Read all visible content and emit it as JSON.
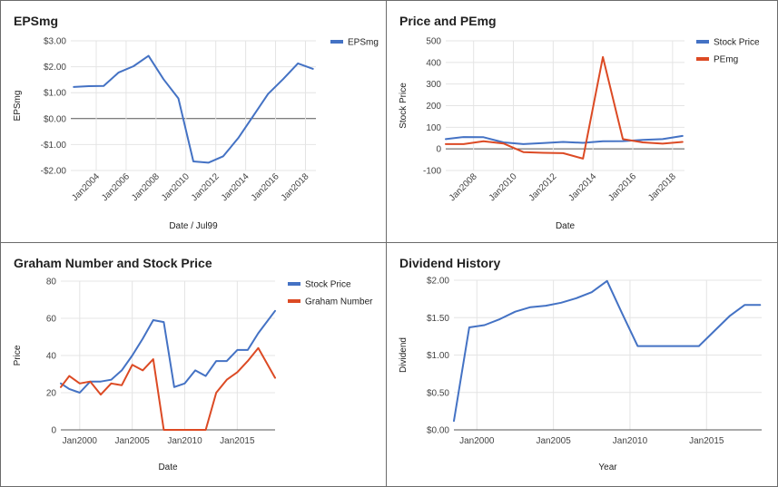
{
  "colors": {
    "blue": "#4472c4",
    "red": "#dc4a24",
    "grid": "#e4e4e4",
    "zero": "#555555"
  },
  "chart_data": [
    {
      "type": "line",
      "title": "EPSmg",
      "xlabel": "Date / Jul99",
      "ylabel": "EPSmg",
      "xlim": [
        2002.3,
        2018.7
      ],
      "ylim": [
        -2,
        3
      ],
      "yticks": [
        -2,
        -1,
        0,
        1,
        2,
        3
      ],
      "ytick_labels": [
        "-$2.00",
        "-$1.00",
        "$0.00",
        "$1.00",
        "$2.00",
        "$3.00"
      ],
      "xticks": [
        2004,
        2006,
        2008,
        2010,
        2012,
        2014,
        2016,
        2018
      ],
      "xtick_labels": [
        "Jan2004",
        "Jan2006",
        "Jan2008",
        "Jan2010",
        "Jan2012",
        "Jan2014",
        "Jan2016",
        "Jan2018"
      ],
      "x_rotated": true,
      "grid": true,
      "zero_line": true,
      "legend": "top-right",
      "series": [
        {
          "name": "EPSmg",
          "color": "blue",
          "x": [
            2002.5,
            2003.5,
            2004.5,
            2005.5,
            2006.5,
            2007.5,
            2008.5,
            2009.5,
            2010.5,
            2011.5,
            2012.5,
            2013.5,
            2014.5,
            2015.5,
            2016.5,
            2017.5,
            2018.5
          ],
          "y": [
            1.22,
            1.25,
            1.26,
            1.78,
            2.02,
            2.42,
            1.52,
            0.78,
            -1.65,
            -1.7,
            -1.45,
            -0.75,
            0.1,
            0.95,
            1.52,
            2.13,
            1.92
          ]
        }
      ]
    },
    {
      "type": "line",
      "title": "Price and PEmg",
      "xlabel": "Date",
      "ylabel": "Stock Price",
      "xlim": [
        2006.6,
        2018.6
      ],
      "ylim": [
        -100,
        500
      ],
      "yticks": [
        -100,
        0,
        100,
        200,
        300,
        400,
        500
      ],
      "ytick_labels": [
        "-100",
        "0",
        "100",
        "200",
        "300",
        "400",
        "500"
      ],
      "xticks": [
        2008,
        2010,
        2012,
        2014,
        2016,
        2018
      ],
      "xtick_labels": [
        "Jan2008",
        "Jan2010",
        "Jan2012",
        "Jan2014",
        "Jan2016",
        "Jan2018"
      ],
      "x_rotated": true,
      "grid": true,
      "zero_line": true,
      "legend": "top-right",
      "series": [
        {
          "name": "Stock Price",
          "color": "blue",
          "x": [
            2006.6,
            2007.5,
            2008.5,
            2009.5,
            2010.5,
            2011.5,
            2012.5,
            2013.5,
            2014.5,
            2015.5,
            2016.5,
            2017.5,
            2018.5
          ],
          "y": [
            45,
            55,
            54,
            30,
            22,
            27,
            32,
            28,
            35,
            36,
            42,
            45,
            60
          ]
        },
        {
          "name": "PEmg",
          "color": "red",
          "x": [
            2006.6,
            2007.5,
            2008.5,
            2009.5,
            2010.5,
            2011.5,
            2012.5,
            2013.5,
            2014.5,
            2015.5,
            2016.5,
            2017.5,
            2018.5
          ],
          "y": [
            22,
            22,
            35,
            25,
            -15,
            -18,
            -20,
            -45,
            425,
            45,
            30,
            24,
            32
          ]
        }
      ]
    },
    {
      "type": "line",
      "title": "Graham Number and Stock Price",
      "xlabel": "Date",
      "ylabel": "Price",
      "xlim": [
        1998.2,
        2018.6
      ],
      "ylim": [
        0,
        80
      ],
      "yticks": [
        0,
        20,
        40,
        60,
        80
      ],
      "ytick_labels": [
        "0",
        "20",
        "40",
        "60",
        "80"
      ],
      "xticks": [
        2000,
        2005,
        2010,
        2015
      ],
      "xtick_labels": [
        "Jan2000",
        "Jan2005",
        "Jan2010",
        "Jan2015"
      ],
      "x_rotated": false,
      "grid": true,
      "zero_line": false,
      "legend": "top-right",
      "series": [
        {
          "name": "Stock Price",
          "color": "blue",
          "x": [
            1998.2,
            1999,
            2000,
            2001,
            2002,
            2003,
            2004,
            2005,
            2006,
            2007,
            2008,
            2009,
            2010,
            2011,
            2012,
            2013,
            2014,
            2015,
            2016,
            2017,
            2018.6
          ],
          "y": [
            25,
            22,
            20,
            26,
            26,
            27,
            32,
            40,
            49,
            59,
            58,
            23,
            25,
            32,
            29,
            37,
            37,
            43,
            43,
            52,
            64
          ]
        },
        {
          "name": "Graham Number",
          "color": "red",
          "x": [
            1998.2,
            1999,
            2000,
            2001,
            2002,
            2003,
            2004,
            2005,
            2006,
            2007,
            2008,
            2009,
            2010,
            2011,
            2012,
            2013,
            2014,
            2015,
            2016,
            2017,
            2018.6
          ],
          "y": [
            23,
            29,
            25,
            26,
            19,
            25,
            24,
            35,
            32,
            38,
            0,
            0,
            0,
            0,
            0,
            20,
            27,
            31,
            37,
            44,
            28
          ]
        }
      ]
    },
    {
      "type": "line",
      "title": "Dividend History",
      "xlabel": "Year",
      "ylabel": "Dividend",
      "xlim": [
        1998.5,
        2018.6
      ],
      "ylim": [
        0,
        2
      ],
      "yticks": [
        0,
        0.5,
        1,
        1.5,
        2
      ],
      "ytick_labels": [
        "$0.00",
        "$0.50",
        "$1.00",
        "$1.50",
        "$2.00"
      ],
      "xticks": [
        2000,
        2005,
        2010,
        2015
      ],
      "xtick_labels": [
        "Jan2000",
        "Jan2005",
        "Jan2010",
        "Jan2015"
      ],
      "x_rotated": false,
      "grid": true,
      "zero_line": false,
      "legend": "none",
      "series": [
        {
          "name": "",
          "color": "blue",
          "x": [
            1998.5,
            1999.5,
            2000.5,
            2001.5,
            2002.5,
            2003.5,
            2004.5,
            2005.5,
            2006.5,
            2007.5,
            2008.5,
            2009.5,
            2010.5,
            2011.5,
            2012.5,
            2013.5,
            2014.5,
            2015.5,
            2016.5,
            2017.5,
            2018.5
          ],
          "y": [
            0.12,
            1.37,
            1.4,
            1.48,
            1.58,
            1.64,
            1.66,
            1.7,
            1.76,
            1.84,
            1.99,
            1.55,
            1.12,
            1.12,
            1.12,
            1.12,
            1.12,
            1.32,
            1.52,
            1.67,
            1.67
          ]
        }
      ]
    }
  ]
}
